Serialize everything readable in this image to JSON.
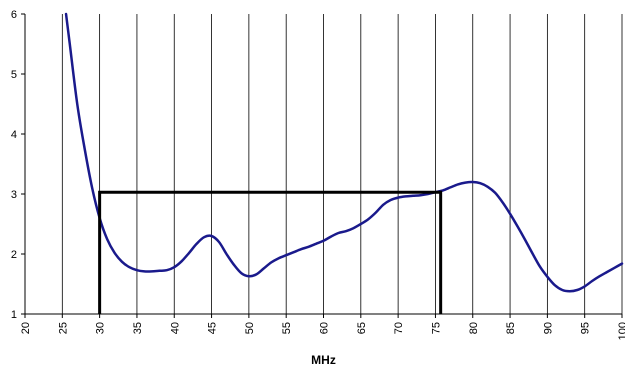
{
  "chart_data": {
    "type": "line",
    "title": "",
    "xlabel": "MHz",
    "ylabel": "",
    "xlim": [
      20,
      100
    ],
    "ylim": [
      1,
      6
    ],
    "x_ticks": [
      20,
      25,
      30,
      35,
      40,
      45,
      50,
      55,
      60,
      65,
      70,
      75,
      80,
      85,
      90,
      95,
      100
    ],
    "y_ticks": [
      1,
      2,
      3,
      4,
      5,
      6
    ],
    "grid": "vertical",
    "legend": "none",
    "colors": {
      "curve": "#1a1a8c",
      "limit_mask": "#000000",
      "grid": "#000000",
      "axis": "#000000",
      "background": "#ffffff"
    },
    "series": [
      {
        "color": "#1a1a8c",
        "points": [
          [
            25.5,
            6.0
          ],
          [
            26,
            5.5
          ],
          [
            27,
            4.5
          ],
          [
            28,
            3.75
          ],
          [
            29,
            3.1
          ],
          [
            30,
            2.6
          ],
          [
            31,
            2.25
          ],
          [
            32,
            2.02
          ],
          [
            33,
            1.87
          ],
          [
            34,
            1.78
          ],
          [
            35,
            1.73
          ],
          [
            36,
            1.71
          ],
          [
            37,
            1.71
          ],
          [
            38,
            1.72
          ],
          [
            39,
            1.73
          ],
          [
            40,
            1.78
          ],
          [
            41,
            1.88
          ],
          [
            42,
            2.02
          ],
          [
            43,
            2.17
          ],
          [
            44,
            2.28
          ],
          [
            45,
            2.3
          ],
          [
            46,
            2.2
          ],
          [
            47,
            2.0
          ],
          [
            48,
            1.82
          ],
          [
            49,
            1.68
          ],
          [
            50,
            1.63
          ],
          [
            51,
            1.66
          ],
          [
            52,
            1.76
          ],
          [
            53,
            1.86
          ],
          [
            54,
            1.93
          ],
          [
            55,
            1.98
          ],
          [
            56,
            2.03
          ],
          [
            57,
            2.08
          ],
          [
            58,
            2.12
          ],
          [
            59,
            2.17
          ],
          [
            60,
            2.22
          ],
          [
            61,
            2.29
          ],
          [
            62,
            2.35
          ],
          [
            63,
            2.38
          ],
          [
            64,
            2.43
          ],
          [
            65,
            2.5
          ],
          [
            66,
            2.58
          ],
          [
            67,
            2.69
          ],
          [
            68,
            2.82
          ],
          [
            69,
            2.9
          ],
          [
            70,
            2.94
          ],
          [
            71,
            2.96
          ],
          [
            72,
            2.97
          ],
          [
            73,
            2.98
          ],
          [
            74,
            3.0
          ],
          [
            75,
            3.03
          ],
          [
            76,
            3.06
          ],
          [
            77,
            3.11
          ],
          [
            78,
            3.16
          ],
          [
            79,
            3.19
          ],
          [
            80,
            3.2
          ],
          [
            81,
            3.18
          ],
          [
            82,
            3.12
          ],
          [
            83,
            3.02
          ],
          [
            84,
            2.86
          ],
          [
            85,
            2.67
          ],
          [
            86,
            2.46
          ],
          [
            87,
            2.24
          ],
          [
            88,
            2.01
          ],
          [
            89,
            1.79
          ],
          [
            90,
            1.62
          ],
          [
            91,
            1.48
          ],
          [
            92,
            1.4
          ],
          [
            93,
            1.38
          ],
          [
            94,
            1.4
          ],
          [
            95,
            1.46
          ],
          [
            96,
            1.55
          ],
          [
            97,
            1.63
          ],
          [
            98,
            1.7
          ],
          [
            99,
            1.77
          ],
          [
            100,
            1.84
          ]
        ]
      }
    ],
    "limit_mask": {
      "color": "#000000",
      "points": [
        [
          30,
          1
        ],
        [
          30,
          3.03
        ],
        [
          75.7,
          3.03
        ],
        [
          75.7,
          1
        ]
      ]
    }
  }
}
